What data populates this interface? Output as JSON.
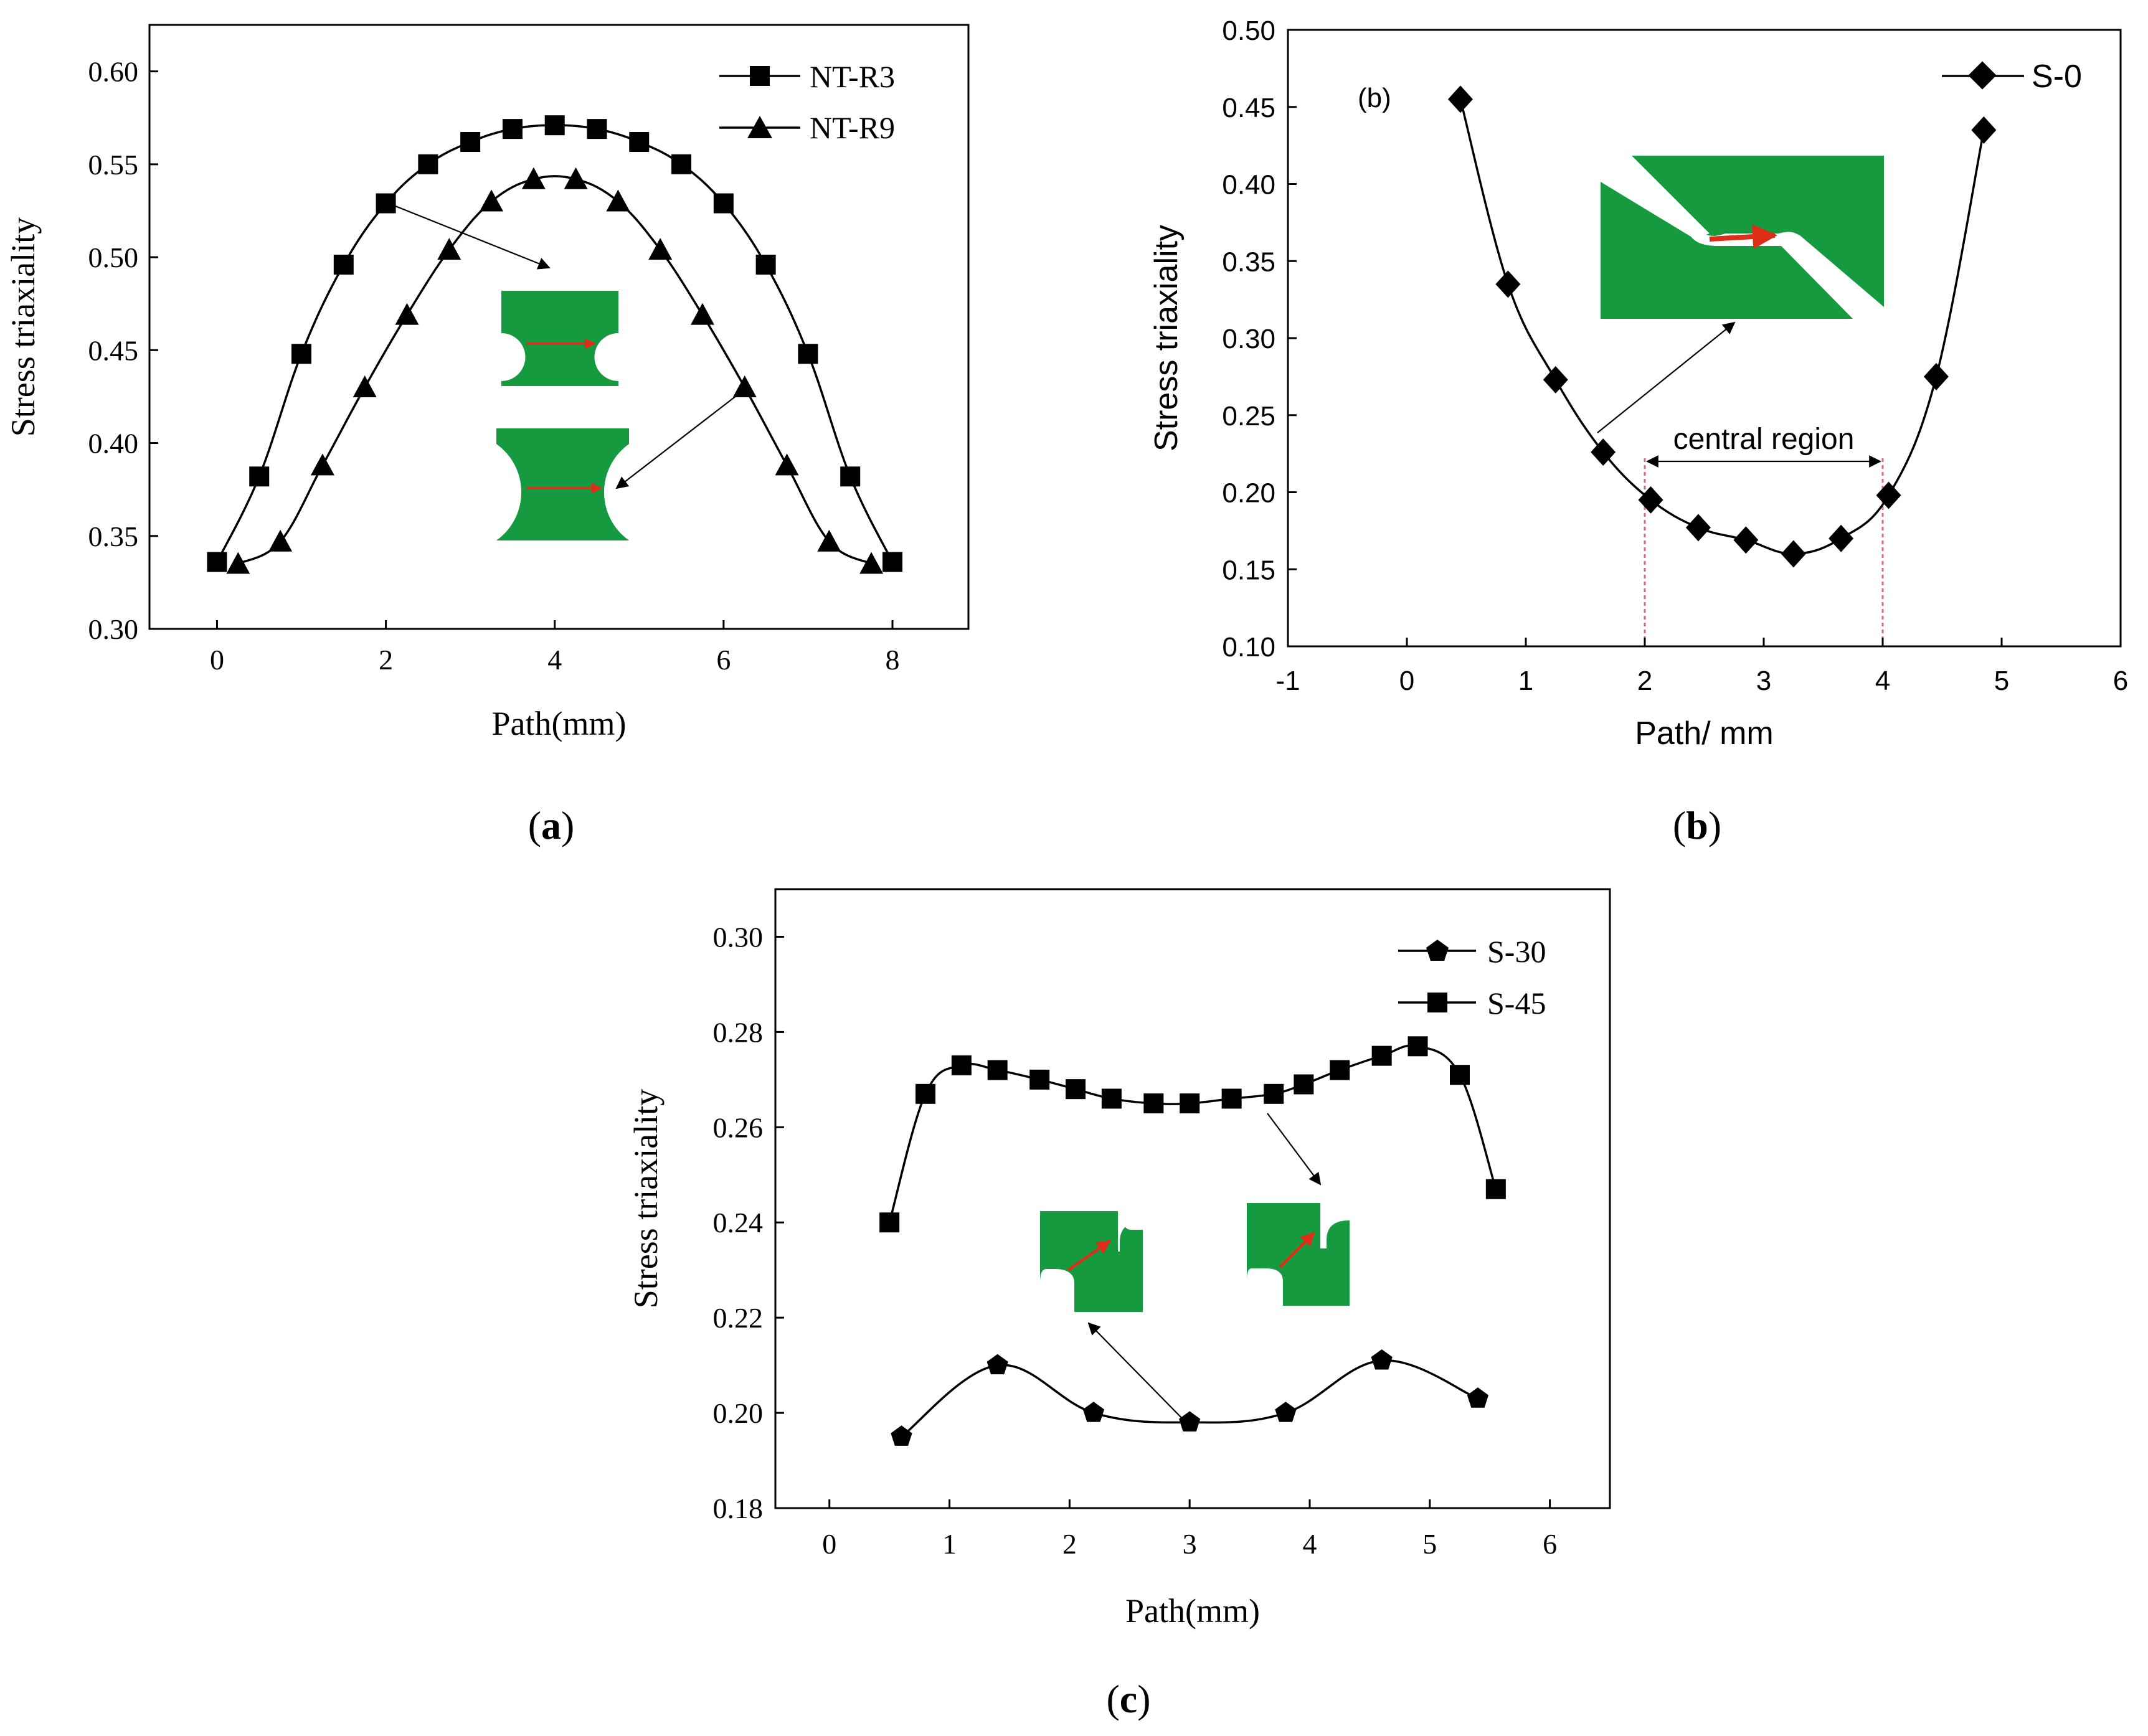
{
  "chart_data": [
    {
      "id": "a",
      "type": "line",
      "panel_label_letter": "a",
      "xlabel": "Path(mm)",
      "ylabel": "Stress triaxiality",
      "xlim": [
        -0.8,
        8.9
      ],
      "ylim": [
        0.3,
        0.625
      ],
      "xticks": [
        0,
        2,
        4,
        6,
        8
      ],
      "yticks": [
        0.3,
        0.35,
        0.4,
        0.45,
        0.5,
        0.55,
        0.6
      ],
      "ytick_decimals": 2,
      "series": [
        {
          "name": "NT-R3",
          "marker": "square",
          "x": [
            0,
            0.5,
            1.0,
            1.5,
            2.0,
            2.5,
            3.0,
            3.5,
            4.0,
            4.5,
            5.0,
            5.5,
            6.0,
            6.5,
            7.0,
            7.5,
            8.0
          ],
          "y": [
            0.336,
            0.382,
            0.448,
            0.496,
            0.529,
            0.55,
            0.562,
            0.569,
            0.571,
            0.569,
            0.562,
            0.55,
            0.529,
            0.496,
            0.448,
            0.382,
            0.336
          ]
        },
        {
          "name": "NT-R9",
          "marker": "triangle",
          "x": [
            0.25,
            0.75,
            1.25,
            1.75,
            2.25,
            2.75,
            3.25,
            3.75,
            4.25,
            4.75,
            5.25,
            5.75,
            6.25,
            6.75,
            7.25,
            7.75
          ],
          "y": [
            0.335,
            0.347,
            0.388,
            0.43,
            0.469,
            0.504,
            0.53,
            0.542,
            0.542,
            0.53,
            0.504,
            0.469,
            0.43,
            0.388,
            0.347,
            0.335
          ]
        }
      ]
    },
    {
      "id": "b",
      "type": "line",
      "panel_label_letter": "b",
      "inner_label": "(b)",
      "xlabel": "Path/ mm",
      "ylabel": "Stress triaxiality",
      "xlim": [
        -1,
        6
      ],
      "ylim": [
        0.1,
        0.5
      ],
      "xticks": [
        -1,
        0,
        1,
        2,
        3,
        4,
        5,
        6
      ],
      "yticks": [
        0.1,
        0.15,
        0.2,
        0.25,
        0.3,
        0.35,
        0.4,
        0.45,
        0.5
      ],
      "ytick_decimals": 2,
      "annotation": "central region",
      "region_x": [
        2,
        4
      ],
      "series": [
        {
          "name": "S-0",
          "marker": "diamond",
          "x": [
            0.45,
            0.85,
            1.25,
            1.65,
            2.05,
            2.45,
            2.85,
            3.25,
            3.65,
            4.05,
            4.45,
            4.85
          ],
          "y": [
            0.455,
            0.335,
            0.273,
            0.226,
            0.195,
            0.177,
            0.169,
            0.16,
            0.17,
            0.198,
            0.275,
            0.435
          ]
        }
      ]
    },
    {
      "id": "c",
      "type": "line",
      "panel_label_letter": "c",
      "xlabel": "Path(mm)",
      "ylabel": "Stress triaxiality",
      "xlim": [
        -0.45,
        6.5
      ],
      "ylim": [
        0.18,
        0.31
      ],
      "xticks": [
        0,
        1,
        2,
        3,
        4,
        5,
        6
      ],
      "yticks": [
        0.18,
        0.2,
        0.22,
        0.24,
        0.26,
        0.28,
        0.3
      ],
      "ytick_decimals": 2,
      "series": [
        {
          "name": "S-30",
          "marker": "pentagon",
          "x": [
            0.6,
            1.4,
            2.2,
            3.0,
            3.8,
            4.6,
            5.4
          ],
          "y": [
            0.195,
            0.21,
            0.2,
            0.198,
            0.2,
            0.211,
            0.203
          ]
        },
        {
          "name": "S-45",
          "marker": "square",
          "x": [
            0.5,
            0.8,
            1.1,
            1.4,
            1.75,
            2.05,
            2.35,
            2.7,
            3.0,
            3.35,
            3.7,
            3.95,
            4.25,
            4.6,
            4.9,
            5.25,
            5.55
          ],
          "y": [
            0.24,
            0.267,
            0.273,
            0.272,
            0.27,
            0.268,
            0.266,
            0.265,
            0.265,
            0.266,
            0.267,
            0.269,
            0.272,
            0.275,
            0.277,
            0.271,
            0.247
          ]
        }
      ]
    }
  ]
}
